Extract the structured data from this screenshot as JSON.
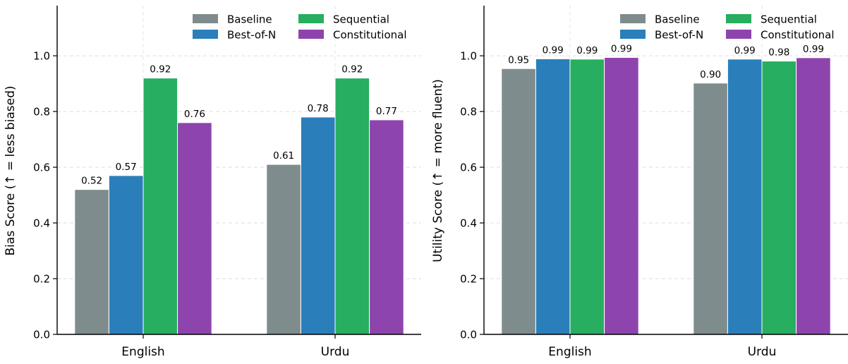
{
  "colors": {
    "Baseline": "#7f8c8d",
    "Best-of-N": "#2a7fba",
    "Sequential": "#27ae60",
    "Constitutional": "#8e44ad"
  },
  "legend": [
    "Baseline",
    "Best-of-N",
    "Sequential",
    "Constitutional"
  ],
  "chart_data": [
    {
      "type": "bar",
      "categories": [
        "English",
        "Urdu"
      ],
      "ylabel": "Bias Score  (↑ = less biased)",
      "ylim": [
        0,
        1.18
      ],
      "yticks": [
        "0.0",
        "0.2",
        "0.4",
        "0.6",
        "0.8",
        "1.0"
      ],
      "grid": true,
      "legend_position": "top-right",
      "series": [
        {
          "name": "Baseline",
          "values": [
            0.52,
            0.61
          ],
          "labels": [
            "0.52",
            "0.61"
          ]
        },
        {
          "name": "Best-of-N",
          "values": [
            0.57,
            0.78
          ],
          "labels": [
            "0.57",
            "0.78"
          ]
        },
        {
          "name": "Sequential",
          "values": [
            0.92,
            0.92
          ],
          "labels": [
            "0.92",
            "0.92"
          ]
        },
        {
          "name": "Constitutional",
          "values": [
            0.76,
            0.77
          ],
          "labels": [
            "0.76",
            "0.77"
          ]
        }
      ]
    },
    {
      "type": "bar",
      "categories": [
        "English",
        "Urdu"
      ],
      "ylabel": "Utility Score  (↑ = more fluent)",
      "ylim": [
        0,
        1.18
      ],
      "yticks": [
        "0.0",
        "0.2",
        "0.4",
        "0.6",
        "0.8",
        "1.0"
      ],
      "grid": true,
      "legend_position": "top-right",
      "series": [
        {
          "name": "Baseline",
          "values": [
            0.954,
            0.902
          ],
          "labels": [
            "0.95",
            "0.90"
          ]
        },
        {
          "name": "Best-of-N",
          "values": [
            0.989,
            0.988
          ],
          "labels": [
            "0.99",
            "0.99"
          ]
        },
        {
          "name": "Sequential",
          "values": [
            0.988,
            0.981
          ],
          "labels": [
            "0.99",
            "0.98"
          ]
        },
        {
          "name": "Constitutional",
          "values": [
            0.994,
            0.993
          ],
          "labels": [
            "0.99",
            "0.99"
          ]
        }
      ]
    }
  ]
}
